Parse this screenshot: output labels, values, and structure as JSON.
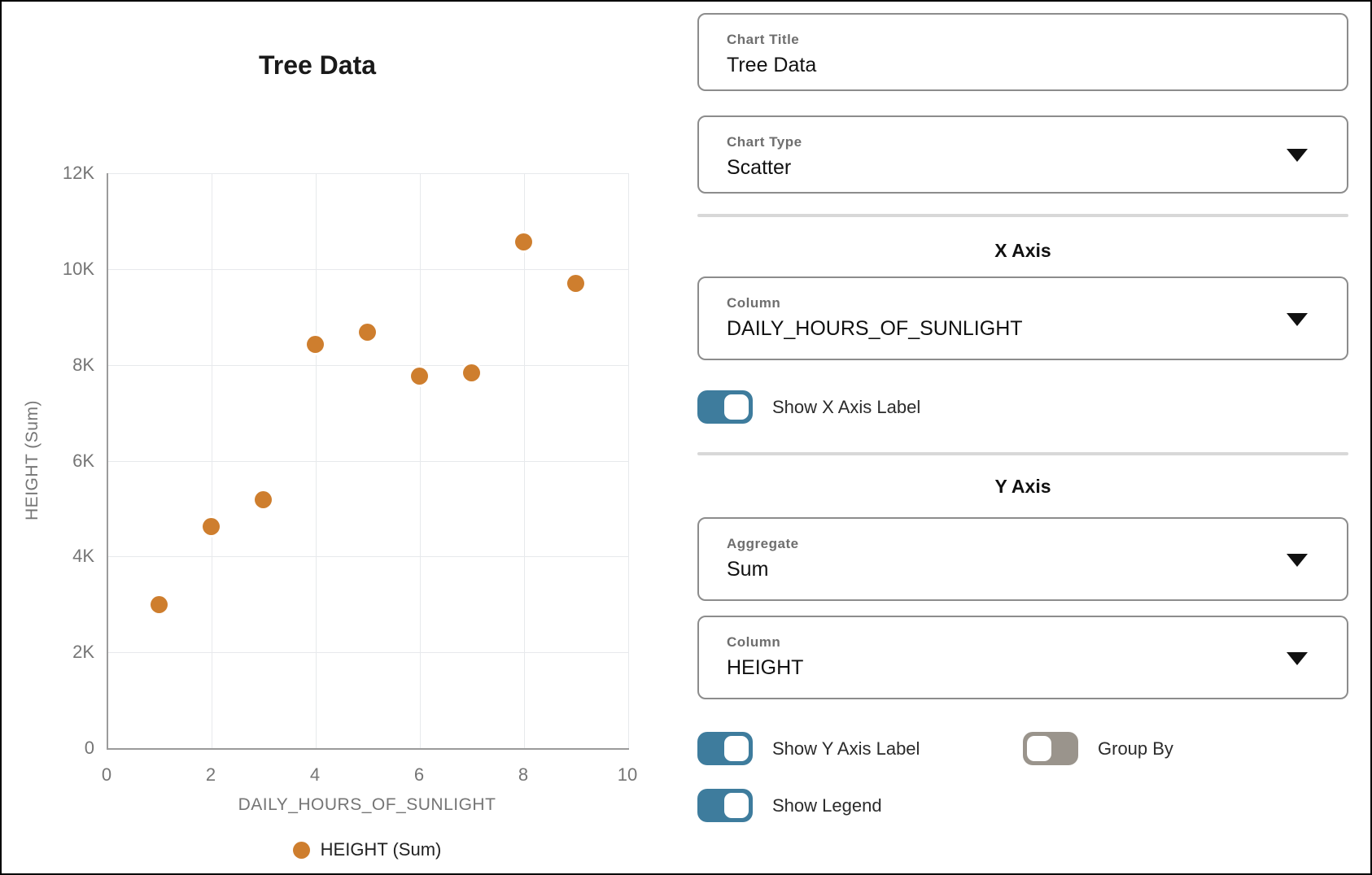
{
  "chart_data": {
    "type": "scatter",
    "title": "Tree Data",
    "xlabel": "DAILY_HOURS_OF_SUNLIGHT",
    "ylabel": "HEIGHT (Sum)",
    "xlim": [
      0,
      10
    ],
    "ylim": [
      0,
      12000
    ],
    "x_ticks": [
      0,
      2,
      4,
      6,
      8,
      10
    ],
    "x_tick_labels": [
      "0",
      "2",
      "4",
      "6",
      "8",
      "10"
    ],
    "y_ticks": [
      0,
      2000,
      4000,
      6000,
      8000,
      10000,
      12000
    ],
    "y_tick_labels": [
      "0",
      "2K",
      "4K",
      "6K",
      "8K",
      "10K",
      "12K"
    ],
    "grid": true,
    "legend_position": "bottom",
    "series": [
      {
        "name": "HEIGHT (Sum)",
        "color": "#CE7E2E",
        "x": [
          1,
          2,
          3,
          4,
          5,
          6,
          7,
          8,
          9
        ],
        "y": [
          3000,
          4630,
          5180,
          8430,
          8690,
          7770,
          7840,
          10570,
          9700
        ]
      }
    ]
  },
  "panel": {
    "fields": {
      "chart_title": {
        "label": "Chart Title",
        "value": "Tree Data"
      },
      "chart_type": {
        "label": "Chart Type",
        "value": "Scatter"
      },
      "x_column": {
        "label": "Column",
        "value": "DAILY_HOURS_OF_SUNLIGHT"
      },
      "aggregate": {
        "label": "Aggregate",
        "value": "Sum"
      },
      "y_column": {
        "label": "Column",
        "value": "HEIGHT"
      }
    },
    "sections": {
      "x_axis": "X Axis",
      "y_axis": "Y Axis"
    },
    "toggles": {
      "show_x_axis_label": {
        "label": "Show X Axis Label",
        "on": true
      },
      "show_y_axis_label": {
        "label": "Show Y Axis Label",
        "on": true
      },
      "group_by": {
        "label": "Group By",
        "on": false
      },
      "show_legend": {
        "label": "Show Legend",
        "on": true
      }
    }
  },
  "colors": {
    "point": "#CE7E2E",
    "toggle_on": "#3E7C9D",
    "toggle_off": "#9A948C",
    "grid": "#E7E9EC",
    "axis": "#9B9B9B",
    "tick_text": "#757575",
    "card_border": "#8C8C8C",
    "divider": "#D8D8D8"
  }
}
